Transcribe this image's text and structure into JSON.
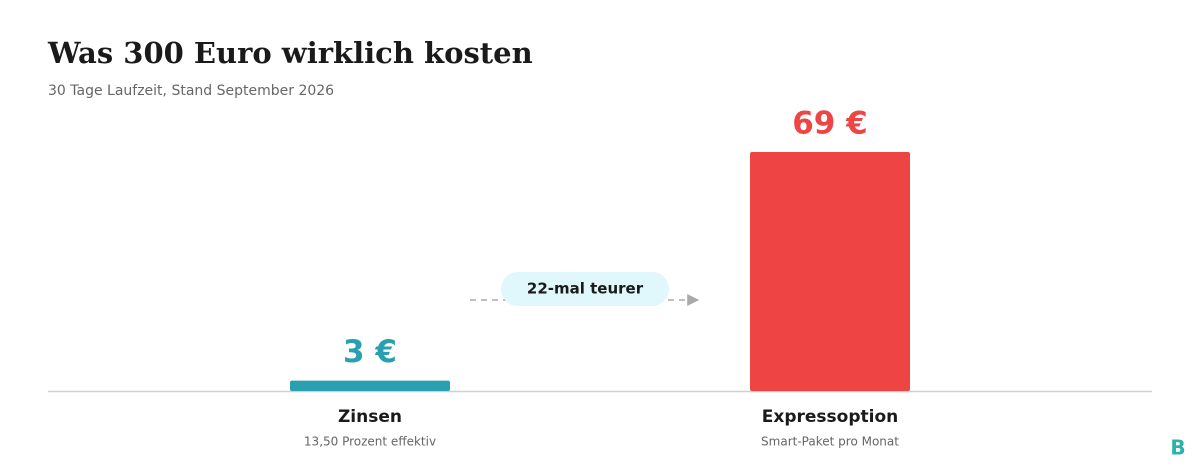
{
  "chart_data": {
    "type": "bar",
    "title": "Was 300 Euro wirklich kosten",
    "subtitle": "30 Tage Laufzeit, Stand September 2026",
    "categories": [
      "Zinsen",
      "Expressoption"
    ],
    "category_notes": [
      "13,50 Prozent effektiv",
      "Smart-Paket pro Monat"
    ],
    "values": [
      3,
      69
    ],
    "value_labels": [
      "3 €",
      "69 €"
    ],
    "colors": [
      "#2a9fb0",
      "#ef4444"
    ],
    "annotation": "22-mal teurer",
    "logo": "B"
  }
}
